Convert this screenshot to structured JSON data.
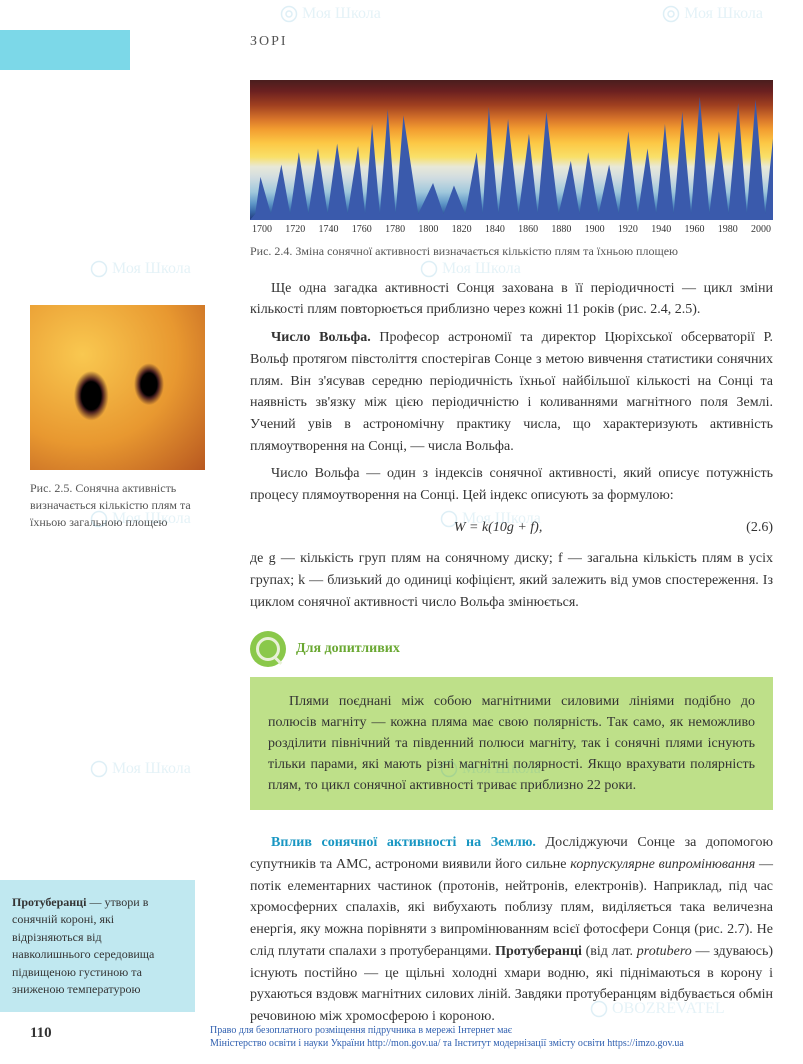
{
  "header": {
    "section_title": "ЗОРІ"
  },
  "chart": {
    "type": "area",
    "x_ticks": [
      "1700",
      "1720",
      "1740",
      "1760",
      "1780",
      "1800",
      "1820",
      "1840",
      "1860",
      "1880",
      "1900",
      "1920",
      "1940",
      "1960",
      "1980",
      "2000"
    ],
    "xlim": [
      1700,
      2000
    ],
    "background_gradient_colors": [
      "#4a1e1e",
      "#6b2020",
      "#a04020",
      "#d8752a",
      "#f29c30",
      "#fcc845",
      "#f9e069",
      "#e8e8d8",
      "#d0dce0",
      "#a0c8dc",
      "#6098c8",
      "#3868a8",
      "#203878"
    ],
    "peak_years": [
      1706,
      1718,
      1728,
      1739,
      1750,
      1762,
      1770,
      1779,
      1788,
      1805,
      1817,
      1830,
      1837,
      1848,
      1860,
      1870,
      1884,
      1894,
      1906,
      1917,
      1928,
      1938,
      1948,
      1958,
      1969,
      1980,
      1990,
      2001
    ],
    "peak_heights_pct": [
      35,
      45,
      55,
      58,
      62,
      60,
      78,
      90,
      85,
      30,
      28,
      55,
      92,
      82,
      70,
      88,
      48,
      55,
      45,
      72,
      58,
      78,
      88,
      100,
      72,
      95,
      98,
      80
    ],
    "caption": "Рис. 2.4. Зміна сонячної активності визначається кількістю плям та їхньою площею"
  },
  "paragraphs": {
    "p1": "Ще одна загадка активності Сонця захована в її періодичності — цикл зміни кількості плям повторюється приблизно через кожні 11 років (рис. 2.4, 2.5).",
    "p2_lead": "Число Вольфа.",
    "p2": " Професор астрономії та директор Цюріхської обсерваторії Р. Вольф протягом півстоліття спостерігав Сонце з метою вивчення статистики сонячних плям. Він з'ясував середню періодичність їхньої найбільшої кількості на Сонці та наявність зв'язку між цією періодичністю і коливаннями магнітного поля Землі. Учений увів в астрономічну практику числа, що характеризують активність плямоутворення на Сонці, — числа Вольфа.",
    "p3": "Число Вольфа — один з індексів сонячної активності, який описує потужність процесу плямоутворення на Сонці. Цей індекс описують за формулою:",
    "formula": "W = k(10g + f),",
    "formula_num": "(2.6)",
    "p4": "де g — кількість груп плям на сонячному диску; f — загальна кількість плям в усіх групах; k — близький до одиниці кофіцієнт, який залежить від умов спостереження. Із циклом сонячної активності число Вольфа змінюється.",
    "callout_title": "Для допитливих",
    "callout_body": "Плями поєднані між собою магнітними силовими лініями подібно до полюсів магніту — кожна пляма має свою полярність. Так само, як неможливо розділити північний та південний полюси магніту, так і сонячні плями існують тільки парами, які мають різні магнітні полярності. Якщо врахувати полярність плям, то цикл сонячної активності триває приблизно 22 роки.",
    "p5_lead": "Вплив сонячної активності на Землю.",
    "p5a": " Досліджуючи Сонце за допомогою супутників та АМС, астрономи виявили його сильне ",
    "p5_italic": "корпускулярне випромінювання",
    "p5b": " — потік елементарних частинок (протонів, нейтронів, електронів). Наприклад, під час хромосферних спалахів, які вибухають поблизу плям, виділяється така величезна енергія, яку можна порівняти з випромінюванням всієї фотосфери Сонця (рис. 2.7). Не слід плутати спалахи з протуберанцями. ",
    "p5_bold": "Протуберанці",
    "p5c": " (від лат. ",
    "p5_italic2": "protubero",
    "p5d": " — здуваюсь) існують постійно — це щільні холодні хмари водню, які піднімаються в корону і рухаються вздовж магнітних силових ліній. Завдяки протуберанцям відбувається обмін речовиною між хромосферою і короною."
  },
  "side_image": {
    "caption": "Рис. 2.5. Сонячна активність визначається кількістю плям та їхньою загальною площею",
    "colors": {
      "surface": "#f9c850",
      "mid": "#e89830",
      "edge": "#b85820",
      "spot": "#000000"
    }
  },
  "side_note": {
    "term": "Протуберанці",
    "body": " — утвори в сонячній короні, які відрізняються від навколишнього середовища підвищеною густиною та зниженою температурою"
  },
  "colors": {
    "tab": "#7cd8e8",
    "callout_bg": "#bee089",
    "callout_accent": "#6aa832",
    "sidenote_bg": "#c0e8f0",
    "heading": "#1896c2",
    "footer_link": "#3060b0"
  },
  "page_number": "110",
  "footer": {
    "line1": "Право для безоплатного розміщення підручника в мережі Інтернет має",
    "line2": "Міністерство освіти і науки України http://mon.gov.ua/ та Інститут модернізації змісту освіти https://imzo.gov.ua"
  },
  "watermark_text": "Моя Школа",
  "watermark_sub": "OBOZREVATEL"
}
